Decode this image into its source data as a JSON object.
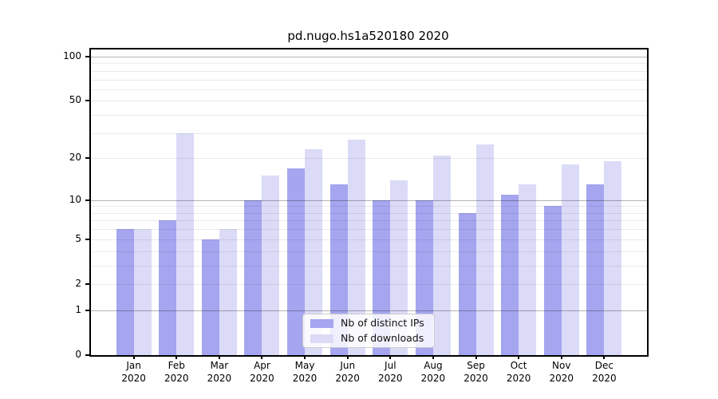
{
  "chart_data": {
    "type": "bar",
    "title": "pd.nugo.hs1a520180 2020",
    "categories": [
      "Jan 2020",
      "Feb 2020",
      "Mar 2020",
      "Apr 2020",
      "May 2020",
      "Jun 2020",
      "Jul 2020",
      "Aug 2020",
      "Sep 2020",
      "Oct 2020",
      "Nov 2020",
      "Dec 2020"
    ],
    "series": [
      {
        "name": "Nb of distinct IPs",
        "color": "#a5a5f0",
        "values": [
          6,
          7,
          5,
          10,
          17,
          13,
          10,
          10,
          8,
          11,
          9,
          13
        ]
      },
      {
        "name": "Nb of downloads",
        "color": "#dbdbf8",
        "values": [
          6,
          30,
          6,
          15,
          23,
          27,
          14,
          21,
          25,
          13,
          18,
          19
        ]
      }
    ],
    "xlabel": "",
    "ylabel": "",
    "y_axis": {
      "scale": "log10(1+y)",
      "ylim": [
        0,
        112
      ],
      "tick_values": [
        0,
        1,
        2,
        5,
        10,
        20,
        50,
        100
      ],
      "tick_labels": [
        "0",
        "1",
        "2",
        "5",
        "10",
        "20",
        "50",
        "100"
      ],
      "major_gridlines": [
        1,
        10,
        100
      ],
      "minor_gridlines": [
        2,
        3,
        4,
        5,
        6,
        7,
        8,
        9,
        20,
        30,
        40,
        50,
        60,
        70,
        80,
        90
      ]
    },
    "grid": "on",
    "legend": {
      "position": "lower center",
      "entries": [
        "Nb of distinct IPs",
        "Nb of downloads"
      ]
    },
    "colors": {
      "bar_distinct_ips": "#a5a5f0",
      "bar_downloads": "#dbdbf8",
      "grid_major": "#b3b3b3",
      "grid_minor": "#ebebeb",
      "axis": "#000000",
      "legend_border": "#cccccc"
    }
  }
}
